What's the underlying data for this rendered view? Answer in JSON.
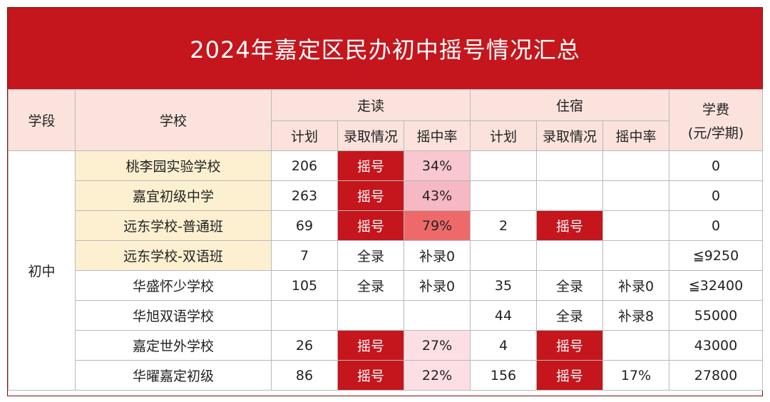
{
  "title": "2024年嘉定区民办初中摇号情况汇总",
  "headers": {
    "stage": "学段",
    "school": "学校",
    "walk": "走读",
    "board": "住宿",
    "fee_line1": "学费",
    "fee_line2": "(元/学期)",
    "plan": "计划",
    "admission": "录取情况",
    "rate": "摇中率"
  },
  "stage_value": "初中",
  "rows": [
    {
      "school": "桃李园实验学校",
      "walk_plan": "206",
      "walk_adm": "摇号",
      "walk_rate": "34%",
      "board_plan": "",
      "board_adm": "",
      "board_rate": "",
      "fee": "0"
    },
    {
      "school": "嘉宜初级中学",
      "walk_plan": "263",
      "walk_adm": "摇号",
      "walk_rate": "43%",
      "board_plan": "",
      "board_adm": "",
      "board_rate": "",
      "fee": "0"
    },
    {
      "school": "远东学校-普通班",
      "walk_plan": "69",
      "walk_adm": "摇号",
      "walk_rate": "79%",
      "board_plan": "2",
      "board_adm": "摇号",
      "board_rate": "",
      "fee": "0"
    },
    {
      "school": "远东学校-双语班",
      "walk_plan": "7",
      "walk_adm": "全录",
      "walk_rate": "补录0",
      "board_plan": "",
      "board_adm": "",
      "board_rate": "",
      "fee": "≦9250"
    },
    {
      "school": "华盛怀少学校",
      "walk_plan": "105",
      "walk_adm": "全录",
      "walk_rate": "补录0",
      "board_plan": "35",
      "board_adm": "全录",
      "board_rate": "补录0",
      "fee": "≦32400"
    },
    {
      "school": "华旭双语学校",
      "walk_plan": "",
      "walk_adm": "",
      "walk_rate": "",
      "board_plan": "44",
      "board_adm": "全录",
      "board_rate": "补录8",
      "fee": "55000"
    },
    {
      "school": "嘉定世外学校",
      "walk_plan": "26",
      "walk_adm": "摇号",
      "walk_rate": "27%",
      "board_plan": "4",
      "board_adm": "摇号",
      "board_rate": "",
      "fee": "43000"
    },
    {
      "school": "华曜嘉定初级",
      "walk_plan": "86",
      "walk_adm": "摇号",
      "walk_rate": "22%",
      "board_plan": "156",
      "board_adm": "摇号",
      "board_rate": "17%",
      "fee": "27800"
    }
  ],
  "colors": {
    "title_bg": "#c4161c",
    "header_bg": "#fbe2dc",
    "school_highlight": "#fdf0d0",
    "lottery_red": "#c4161c"
  }
}
